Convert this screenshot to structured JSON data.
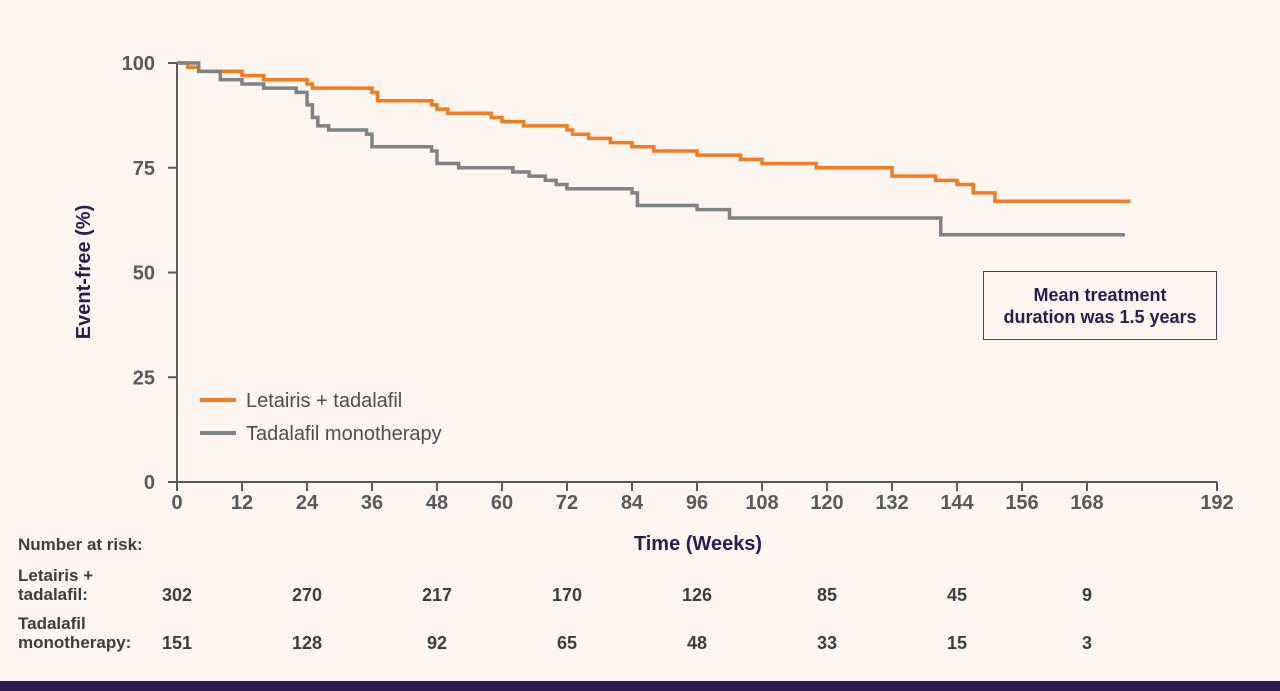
{
  "chart_data": {
    "type": "line",
    "xlabel": "Time (Weeks)",
    "ylabel": "Event-free (%)",
    "xlim": [
      0,
      192
    ],
    "ylim": [
      0,
      100
    ],
    "x_ticks": [
      0,
      12,
      24,
      36,
      48,
      60,
      72,
      84,
      96,
      108,
      120,
      132,
      144,
      156,
      168,
      192
    ],
    "y_ticks": [
      0,
      25,
      50,
      75,
      100
    ],
    "legend_position": "bottom-left",
    "series": [
      {
        "name": "Letairis + tadalafil",
        "color": "#f47b20",
        "points": [
          [
            0,
            100
          ],
          [
            2,
            99
          ],
          [
            4,
            98
          ],
          [
            12,
            97
          ],
          [
            16,
            96
          ],
          [
            24,
            95
          ],
          [
            25,
            94
          ],
          [
            36,
            93
          ],
          [
            37,
            91
          ],
          [
            47,
            90
          ],
          [
            48,
            89
          ],
          [
            50,
            88
          ],
          [
            58,
            87
          ],
          [
            60,
            86
          ],
          [
            64,
            85
          ],
          [
            72,
            84
          ],
          [
            73,
            83
          ],
          [
            76,
            82
          ],
          [
            80,
            81
          ],
          [
            84,
            80
          ],
          [
            88,
            79
          ],
          [
            96,
            78
          ],
          [
            104,
            77
          ],
          [
            108,
            76
          ],
          [
            118,
            75
          ],
          [
            132,
            73
          ],
          [
            140,
            72
          ],
          [
            144,
            71
          ],
          [
            147,
            69
          ],
          [
            151,
            67
          ],
          [
            176,
            67
          ]
        ]
      },
      {
        "name": "Tadalafil monotherapy",
        "color": "#808285",
        "points": [
          [
            0,
            100
          ],
          [
            4,
            98
          ],
          [
            8,
            96
          ],
          [
            12,
            95
          ],
          [
            16,
            94
          ],
          [
            22,
            93
          ],
          [
            24,
            90
          ],
          [
            25,
            87
          ],
          [
            26,
            85
          ],
          [
            28,
            84
          ],
          [
            35,
            83
          ],
          [
            36,
            80
          ],
          [
            47,
            79
          ],
          [
            48,
            76
          ],
          [
            52,
            75
          ],
          [
            62,
            74
          ],
          [
            65,
            73
          ],
          [
            68,
            72
          ],
          [
            70,
            71
          ],
          [
            72,
            70
          ],
          [
            84,
            69
          ],
          [
            85,
            66
          ],
          [
            96,
            65
          ],
          [
            102,
            63
          ],
          [
            140,
            63
          ],
          [
            141,
            59
          ],
          [
            175,
            59
          ]
        ]
      }
    ],
    "annotation": [
      "Mean treatment",
      "duration was 1.5 years"
    ]
  },
  "risk_table": {
    "title": "Number at risk:",
    "timepoints": [
      0,
      24,
      48,
      72,
      96,
      120,
      144,
      168
    ],
    "rows": [
      {
        "label_lines": [
          "Letairis +",
          "tadalafil:"
        ],
        "values": [
          "302",
          "270",
          "217",
          "170",
          "126",
          "85",
          "45",
          "9"
        ]
      },
      {
        "label_lines": [
          "Tadalafil",
          "monotherapy:"
        ],
        "values": [
          "151",
          "128",
          "92",
          "65",
          "48",
          "33",
          "15",
          "3"
        ]
      }
    ]
  },
  "colors": {
    "background": "#fdf6f0",
    "accent_dark": "#2d1a4f",
    "footer_bar": "#2d1a4f"
  }
}
